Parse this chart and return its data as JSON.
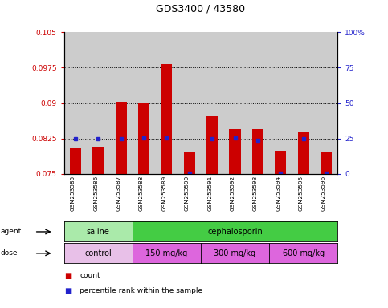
{
  "title": "GDS3400 / 43580",
  "samples": [
    "GSM253585",
    "GSM253586",
    "GSM253587",
    "GSM253588",
    "GSM253589",
    "GSM253590",
    "GSM253591",
    "GSM253592",
    "GSM253593",
    "GSM253594",
    "GSM253595",
    "GSM253596"
  ],
  "red_values": [
    0.0806,
    0.0808,
    0.0902,
    0.0901,
    0.0982,
    0.0795,
    0.0872,
    0.0845,
    0.0845,
    0.08,
    0.084,
    0.0796
  ],
  "blue_values": [
    0.0825,
    0.0824,
    0.0825,
    0.0826,
    0.0826,
    0.0752,
    0.0825,
    0.0826,
    0.0822,
    0.0752,
    0.0824,
    0.0752
  ],
  "ylim_left": [
    0.075,
    0.105
  ],
  "ylim_right": [
    0,
    100
  ],
  "yticks_left": [
    0.075,
    0.0825,
    0.09,
    0.0975,
    0.105
  ],
  "yticks_right": [
    0,
    25,
    50,
    75,
    100
  ],
  "ytick_labels_left": [
    "0.075",
    "0.0825",
    "0.09",
    "0.0975",
    "0.105"
  ],
  "ytick_labels_right": [
    "0",
    "25",
    "50",
    "75",
    "100%"
  ],
  "hlines": [
    0.0825,
    0.09,
    0.0975
  ],
  "agent_groups": [
    {
      "label": "saline",
      "start": 0,
      "end": 3,
      "color": "#aaeaaa"
    },
    {
      "label": "cephalosporin",
      "start": 3,
      "end": 12,
      "color": "#44cc44"
    }
  ],
  "dose_groups": [
    {
      "label": "control",
      "start": 0,
      "end": 3,
      "color": "#e8c0e8"
    },
    {
      "label": "150 mg/kg",
      "start": 3,
      "end": 6,
      "color": "#dd66dd"
    },
    {
      "label": "300 mg/kg",
      "start": 6,
      "end": 9,
      "color": "#dd66dd"
    },
    {
      "label": "600 mg/kg",
      "start": 9,
      "end": 12,
      "color": "#dd66dd"
    }
  ],
  "bar_width": 0.5,
  "red_color": "#cc0000",
  "blue_color": "#2222cc",
  "bg_color": "#cccccc",
  "legend_red_label": "count",
  "legend_blue_label": "percentile rank within the sample",
  "label_agent": "agent",
  "label_dose": "dose"
}
